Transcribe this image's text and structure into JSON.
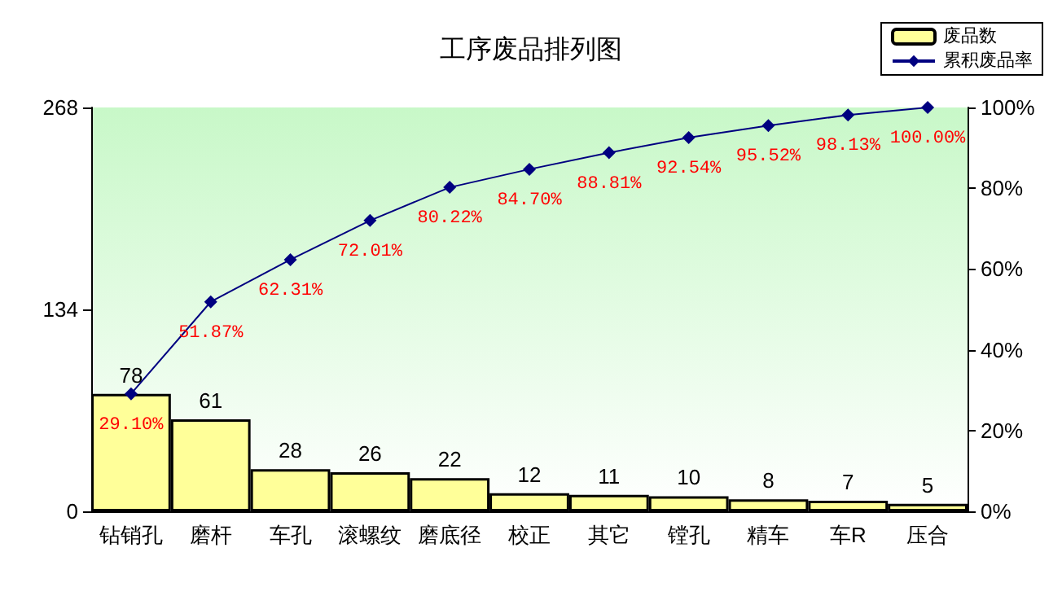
{
  "chart_data": {
    "type": "bar",
    "title": "工序废品排列图",
    "categories": [
      "钻销孔",
      "磨杆",
      "车孔",
      "滚螺纹",
      "磨底径",
      "校正",
      "其它",
      "镗孔",
      "精车",
      "车R",
      "压合"
    ],
    "series": [
      {
        "name": "废品数",
        "color": "#ffff99",
        "values": [
          78,
          61,
          28,
          26,
          22,
          12,
          11,
          10,
          8,
          7,
          5
        ],
        "value_labels": [
          "78",
          "61",
          "28",
          "26",
          "22",
          "12",
          "11",
          "10",
          "8",
          "7",
          "5"
        ]
      },
      {
        "name": "累积废品率",
        "type": "line",
        "axis": "y2",
        "color": "#000080",
        "marker": "diamond",
        "values": [
          29.1,
          51.87,
          62.31,
          72.01,
          80.22,
          84.7,
          88.81,
          92.54,
          95.52,
          98.13,
          100.0
        ],
        "value_labels": [
          "29.10%",
          "51.87%",
          "62.31%",
          "72.01%",
          "80.22%",
          "84.70%",
          "88.81%",
          "92.54%",
          "95.52%",
          "98.13%",
          "100.00%"
        ]
      }
    ],
    "ylim": [
      0,
      268
    ],
    "yticks": [
      0,
      134,
      268
    ],
    "y2lim": [
      0,
      100
    ],
    "y2ticks": [
      {
        "value": 0,
        "label": "0%"
      },
      {
        "value": 20,
        "label": "20%"
      },
      {
        "value": 40,
        "label": "40%"
      },
      {
        "value": 60,
        "label": "60%"
      },
      {
        "value": 80,
        "label": "80%"
      },
      {
        "value": 100,
        "label": "100%"
      }
    ],
    "grid": false,
    "legend": "top right"
  }
}
